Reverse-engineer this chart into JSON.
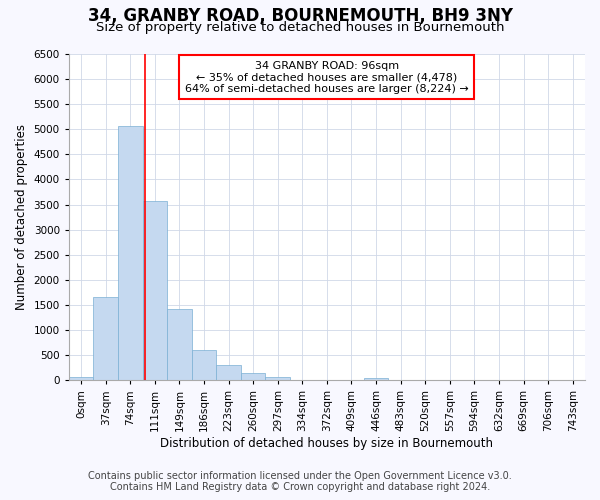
{
  "title": "34, GRANBY ROAD, BOURNEMOUTH, BH9 3NY",
  "subtitle": "Size of property relative to detached houses in Bournemouth",
  "xlabel": "Distribution of detached houses by size in Bournemouth",
  "ylabel": "Number of detached properties",
  "bar_labels": [
    "0sqm",
    "37sqm",
    "74sqm",
    "111sqm",
    "149sqm",
    "186sqm",
    "223sqm",
    "260sqm",
    "297sqm",
    "334sqm",
    "372sqm",
    "409sqm",
    "446sqm",
    "483sqm",
    "520sqm",
    "557sqm",
    "594sqm",
    "632sqm",
    "669sqm",
    "706sqm",
    "743sqm"
  ],
  "bar_values": [
    75,
    1650,
    5075,
    3575,
    1425,
    600,
    300,
    150,
    75,
    0,
    0,
    0,
    50,
    0,
    0,
    0,
    0,
    0,
    0,
    0,
    0
  ],
  "bar_color": "#c5d9f0",
  "bar_edgecolor": "#7bafd4",
  "ylim": [
    0,
    6500
  ],
  "yticks": [
    0,
    500,
    1000,
    1500,
    2000,
    2500,
    3000,
    3500,
    4000,
    4500,
    5000,
    5500,
    6000,
    6500
  ],
  "red_line_x": 2.6,
  "annotation_text": "34 GRANBY ROAD: 96sqm\n← 35% of detached houses are smaller (4,478)\n64% of semi-detached houses are larger (8,224) →",
  "annotation_box_color": "white",
  "annotation_box_edgecolor": "red",
  "footer1": "Contains HM Land Registry data © Crown copyright and database right 2024.",
  "footer2": "Contains public sector information licensed under the Open Government Licence v3.0.",
  "background_color": "#f8f8ff",
  "plot_background": "white",
  "grid_color": "#d0d8e8",
  "title_fontsize": 12,
  "subtitle_fontsize": 9.5,
  "label_fontsize": 8.5,
  "tick_fontsize": 7.5,
  "footer_fontsize": 7,
  "annotation_fontsize": 8
}
